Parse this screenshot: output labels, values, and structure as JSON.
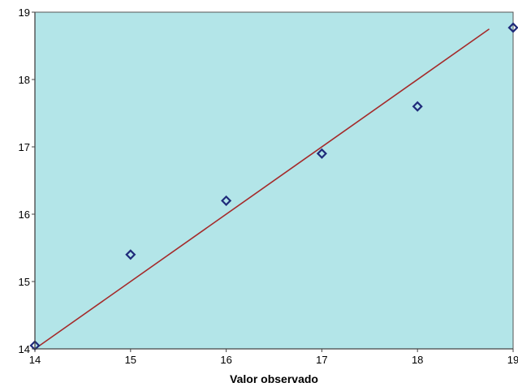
{
  "chart_data": {
    "type": "scatter",
    "title": "",
    "xlabel": "Valor observado",
    "ylabel": "",
    "xlim": [
      14,
      19
    ],
    "ylim": [
      14,
      19
    ],
    "x_ticks": [
      14,
      15,
      16,
      17,
      18,
      19
    ],
    "y_ticks": [
      14,
      15,
      16,
      17,
      18,
      19
    ],
    "grid": false,
    "series": [
      {
        "marker": "diamond",
        "x": [
          14,
          15,
          16,
          17,
          18,
          19
        ],
        "y": [
          14.05,
          15.4,
          16.2,
          16.9,
          17.6,
          18.77
        ]
      }
    ],
    "reference_line": {
      "x": [
        14,
        18.75
      ],
      "y": [
        14,
        18.75
      ]
    },
    "colors": {
      "plot_background": "#b3e5e8",
      "marker": "#1f2b7a",
      "reference_line": "#a52a2a"
    }
  }
}
